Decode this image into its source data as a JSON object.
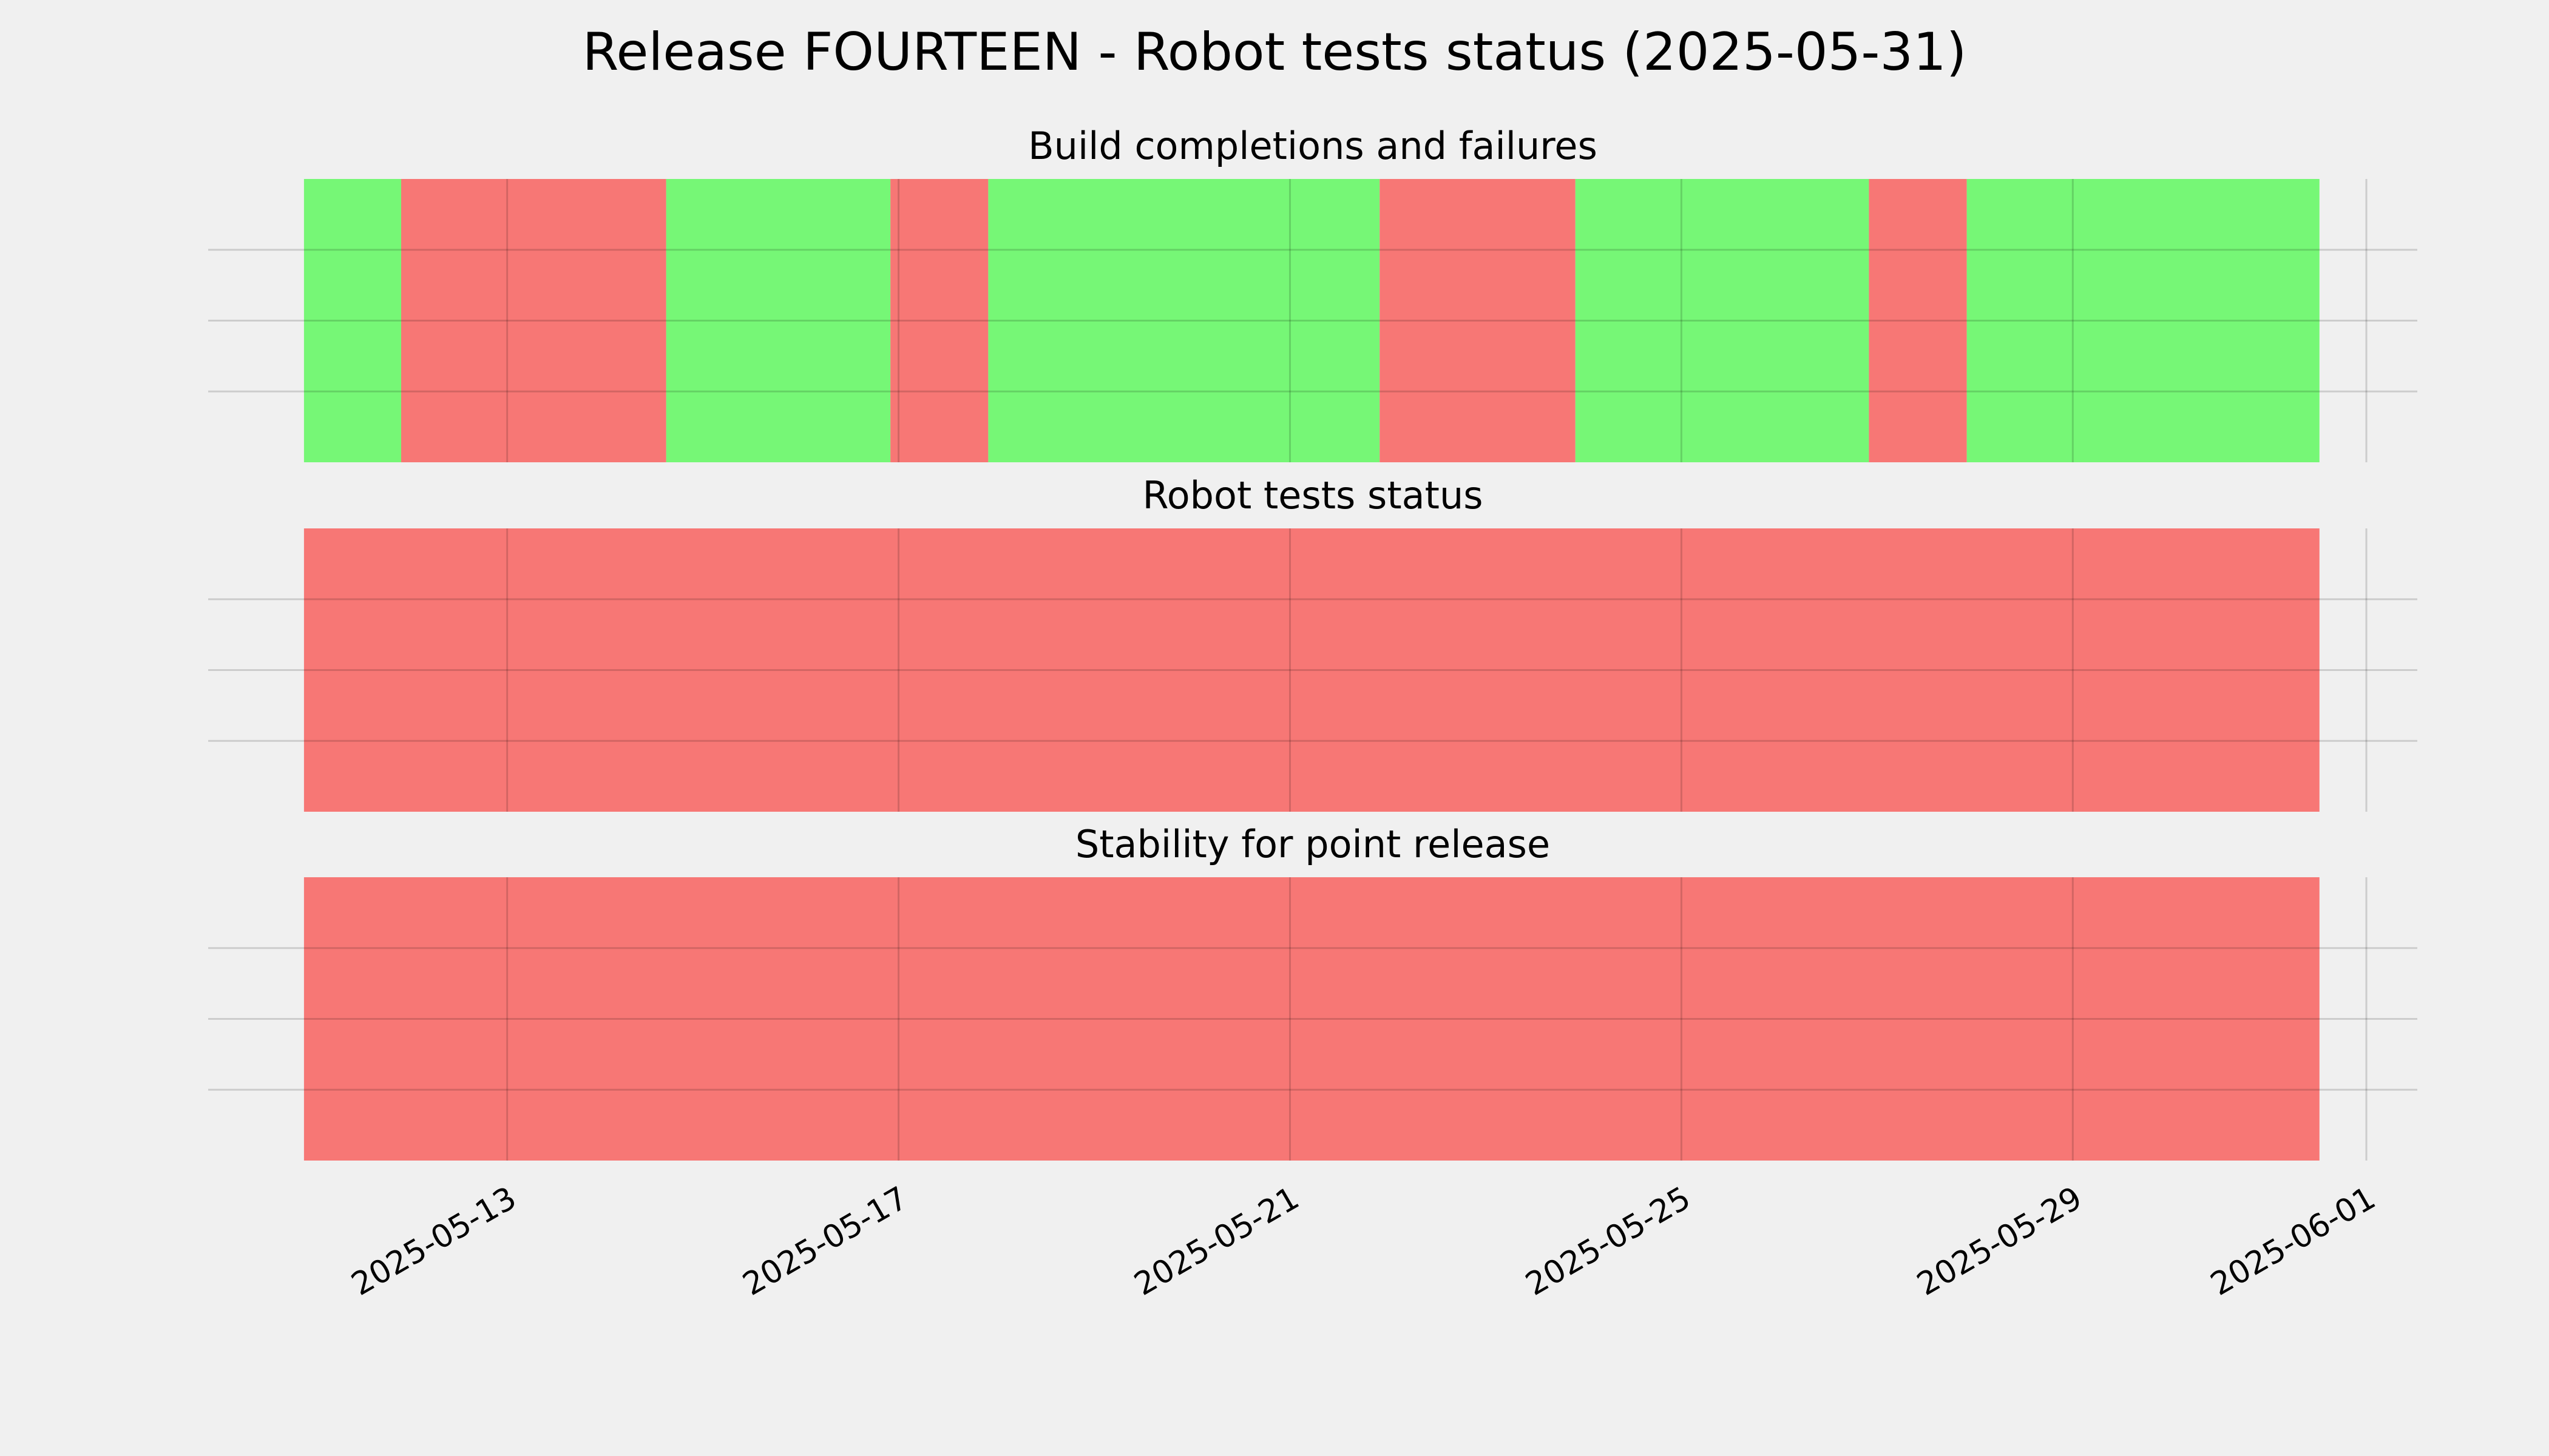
{
  "chart_data": {
    "type": "timeline",
    "title": "Release FOURTEEN - Robot tests status (2025-05-31)",
    "xlim": [
      "2025-05-09 22:40",
      "2025-06-01 12:30"
    ],
    "xticks": [
      "2025-05-13",
      "2025-05-17",
      "2025-05-21",
      "2025-05-25",
      "2025-05-29",
      "2025-06-01"
    ],
    "ylim": [
      0,
      1
    ],
    "yticks": [
      0.25,
      0.5,
      0.75
    ],
    "grid": true,
    "panels": [
      {
        "title": "Build completions and failures",
        "segments": [
          {
            "start": "2025-05-10 22:10",
            "end": "2025-05-11 22:00",
            "color": "#76f776"
          },
          {
            "start": "2025-05-11 22:00",
            "end": "2025-05-14 15:00",
            "color": "#f77775"
          },
          {
            "start": "2025-05-14 15:00",
            "end": "2025-05-16 22:00",
            "color": "#76f776"
          },
          {
            "start": "2025-05-16 22:00",
            "end": "2025-05-17 22:00",
            "color": "#f77775"
          },
          {
            "start": "2025-05-17 22:00",
            "end": "2025-05-21 22:00",
            "color": "#76f776"
          },
          {
            "start": "2025-05-21 22:00",
            "end": "2025-05-23 22:00",
            "color": "#f77775"
          },
          {
            "start": "2025-05-23 22:00",
            "end": "2025-05-26 22:00",
            "color": "#76f776"
          },
          {
            "start": "2025-05-26 22:00",
            "end": "2025-05-27 22:00",
            "color": "#f77775"
          },
          {
            "start": "2025-05-27 22:00",
            "end": "2025-05-31 12:30",
            "color": "#76f776"
          }
        ]
      },
      {
        "title": "Robot tests status",
        "segments": [
          {
            "start": "2025-05-10 22:10",
            "end": "2025-05-31 12:30",
            "color": "#f77775"
          }
        ]
      },
      {
        "title": "Stability for point release",
        "segments": [
          {
            "start": "2025-05-10 22:10",
            "end": "2025-05-31 12:30",
            "color": "#f77775"
          }
        ]
      }
    ]
  }
}
